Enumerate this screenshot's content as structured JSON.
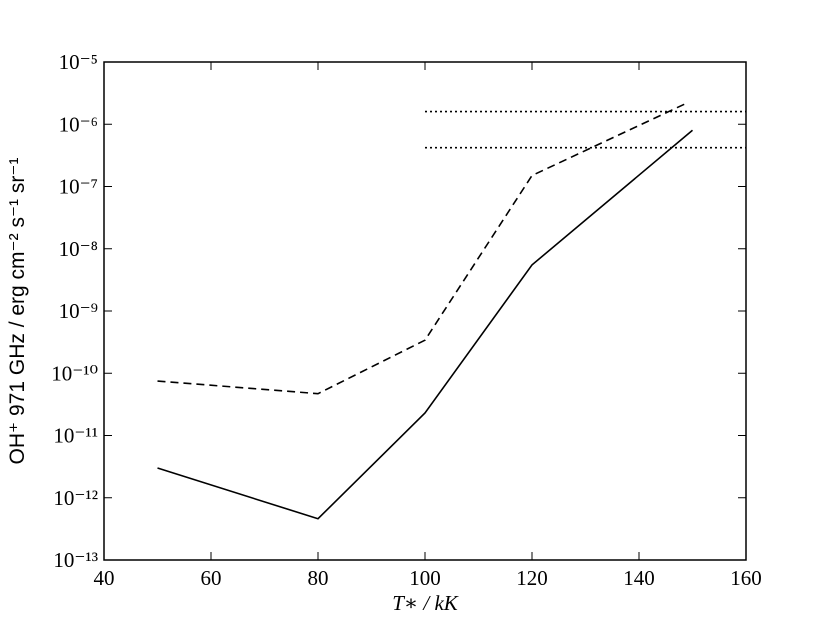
{
  "chart_data": {
    "type": "line",
    "xlabel": "T∗ / kK",
    "ylabel": "OH⁺ 971 GHz / erg cm⁻² s⁻¹ sr⁻¹",
    "xlim": [
      40,
      160
    ],
    "xticks": [
      40,
      60,
      80,
      100,
      120,
      140,
      160
    ],
    "ylim": [
      1e-13,
      1e-05
    ],
    "log_y": true,
    "yticks": [
      {
        "value": 1e-13,
        "label": "10⁻¹³"
      },
      {
        "value": 1e-12,
        "label": "10⁻¹²"
      },
      {
        "value": 1e-11,
        "label": "10⁻¹¹"
      },
      {
        "value": 1e-10,
        "label": "10⁻¹⁰"
      },
      {
        "value": 1e-09,
        "label": "10⁻⁹"
      },
      {
        "value": 1e-08,
        "label": "10⁻⁸"
      },
      {
        "value": 1e-07,
        "label": "10⁻⁷"
      },
      {
        "value": 1e-06,
        "label": "10⁻⁶"
      },
      {
        "value": 1e-05,
        "label": "10⁻⁵"
      }
    ],
    "series": [
      {
        "color": "#000000",
        "linestyle": "solid",
        "x": [
          50,
          80,
          100,
          120,
          150
        ],
        "values": [
          3e-12,
          4.6e-13,
          2.3e-11,
          5.5e-09,
          8e-07
        ]
      },
      {
        "color": "#000000",
        "linestyle": "dashed",
        "x": [
          50,
          80,
          100,
          120,
          149
        ],
        "values": [
          7.5e-11,
          4.7e-11,
          3.4e-10,
          1.5e-07,
          2.2e-06
        ]
      },
      {
        "color": "#000000",
        "linestyle": "dotted",
        "x": [
          100,
          160
        ],
        "values": [
          1.6e-06,
          1.6e-06
        ]
      },
      {
        "color": "#000000",
        "linestyle": "dotted",
        "x": [
          100,
          160
        ],
        "values": [
          4.2e-07,
          4.2e-07
        ]
      }
    ]
  }
}
